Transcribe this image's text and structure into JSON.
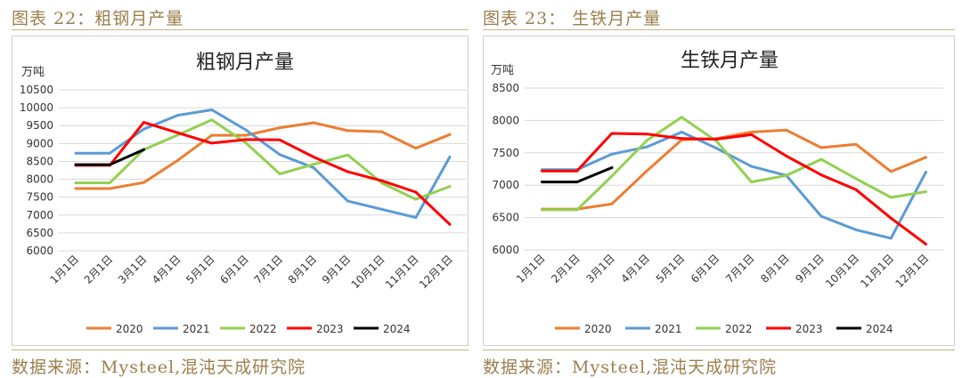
{
  "left_panel": {
    "figure_title": "图表 22：粗钢月产量",
    "source": "数据来源：Mysteel,混沌天成研究院"
  },
  "right_panel": {
    "figure_title": "图表 23：  生铁月产量",
    "source": "数据来源：Mysteel,混沌天成研究院"
  },
  "colors": {
    "2020": "#ED7D31",
    "2021": "#5B9BD5",
    "2022": "#92D050",
    "2023": "#FF0000",
    "2024": "#000000",
    "accent": "#9b7f4d"
  },
  "chart_data": [
    {
      "type": "line",
      "title": "粗钢月产量",
      "ylabel": "万吨",
      "xlabel": "",
      "categories": [
        "1月1日",
        "2月1日",
        "3月1日",
        "4月1日",
        "5月1日",
        "6月1日",
        "7月1日",
        "8月1日",
        "9月1日",
        "10月1日",
        "11月1日",
        "12月1日"
      ],
      "ylim": [
        6000,
        10500
      ],
      "yticks": [
        6000,
        6500,
        7000,
        7500,
        8000,
        8500,
        9000,
        9500,
        10000,
        10500
      ],
      "grid": true,
      "legend": "bottom",
      "series": [
        {
          "name": "2020",
          "values": [
            7740,
            7740,
            7910,
            8530,
            9230,
            9230,
            9440,
            9580,
            9360,
            9330,
            8870,
            9250
          ]
        },
        {
          "name": "2021",
          "values": [
            8730,
            8730,
            9400,
            9790,
            9940,
            9380,
            8690,
            8320,
            7390,
            7160,
            6930,
            8620
          ]
        },
        {
          "name": "2022",
          "values": [
            7900,
            7900,
            8830,
            9240,
            9660,
            9020,
            8150,
            8420,
            8680,
            7900,
            7440,
            7800
          ]
        },
        {
          "name": "2023",
          "values": [
            8390,
            8390,
            9590,
            9300,
            9010,
            9110,
            9100,
            8620,
            8210,
            7960,
            7640,
            6740
          ]
        },
        {
          "name": "2024",
          "values": [
            8410,
            8410,
            8830,
            null,
            null,
            null,
            null,
            null,
            null,
            null,
            null,
            null
          ]
        }
      ]
    },
    {
      "type": "line",
      "title": "生铁月产量",
      "ylabel": "万吨",
      "xlabel": "",
      "categories": [
        "1月1日",
        "2月1日",
        "3月1日",
        "4月1日",
        "5月1日",
        "6月1日",
        "7月1日",
        "8月1日",
        "9月1日",
        "10月1日",
        "11月1日",
        "12月1日"
      ],
      "ylim": [
        6000,
        8500
      ],
      "yticks": [
        6000,
        6500,
        7000,
        7500,
        8000,
        8500
      ],
      "grid": true,
      "legend": "bottom",
      "series": [
        {
          "name": "2020",
          "values": [
            6630,
            6630,
            6710,
            7220,
            7700,
            7720,
            7820,
            7850,
            7580,
            7630,
            7210,
            7430
          ]
        },
        {
          "name": "2021",
          "values": [
            7240,
            7240,
            7480,
            7590,
            7820,
            7570,
            7290,
            7150,
            6520,
            6310,
            6180,
            7200
          ]
        },
        {
          "name": "2022",
          "values": [
            6620,
            6620,
            7140,
            7690,
            8050,
            7680,
            7050,
            7150,
            7400,
            7100,
            6810,
            6900
          ]
        },
        {
          "name": "2023",
          "values": [
            7220,
            7220,
            7800,
            7790,
            7720,
            7710,
            7780,
            7450,
            7160,
            6930,
            6490,
            6090
          ]
        },
        {
          "name": "2024",
          "values": [
            7050,
            7050,
            7270,
            null,
            null,
            null,
            null,
            null,
            null,
            null,
            null,
            null
          ]
        }
      ]
    }
  ]
}
